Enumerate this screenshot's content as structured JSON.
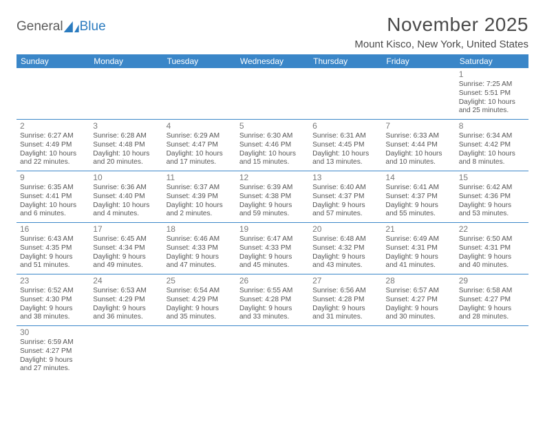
{
  "logo": {
    "part1": "General",
    "part2": "Blue"
  },
  "title": "November 2025",
  "location": "Mount Kisco, New York, United States",
  "colors": {
    "header_bg": "#3a86c8",
    "header_text": "#ffffff",
    "border": "#3a86c8",
    "text": "#555555",
    "logo_gray": "#5a5a5a",
    "logo_blue": "#2b7bbf"
  },
  "day_headers": [
    "Sunday",
    "Monday",
    "Tuesday",
    "Wednesday",
    "Thursday",
    "Friday",
    "Saturday"
  ],
  "weeks": [
    [
      {
        "n": "",
        "l1": "",
        "l2": "",
        "l3": "",
        "l4": ""
      },
      {
        "n": "",
        "l1": "",
        "l2": "",
        "l3": "",
        "l4": ""
      },
      {
        "n": "",
        "l1": "",
        "l2": "",
        "l3": "",
        "l4": ""
      },
      {
        "n": "",
        "l1": "",
        "l2": "",
        "l3": "",
        "l4": ""
      },
      {
        "n": "",
        "l1": "",
        "l2": "",
        "l3": "",
        "l4": ""
      },
      {
        "n": "",
        "l1": "",
        "l2": "",
        "l3": "",
        "l4": ""
      },
      {
        "n": "1",
        "l1": "Sunrise: 7:25 AM",
        "l2": "Sunset: 5:51 PM",
        "l3": "Daylight: 10 hours",
        "l4": "and 25 minutes."
      }
    ],
    [
      {
        "n": "2",
        "l1": "Sunrise: 6:27 AM",
        "l2": "Sunset: 4:49 PM",
        "l3": "Daylight: 10 hours",
        "l4": "and 22 minutes."
      },
      {
        "n": "3",
        "l1": "Sunrise: 6:28 AM",
        "l2": "Sunset: 4:48 PM",
        "l3": "Daylight: 10 hours",
        "l4": "and 20 minutes."
      },
      {
        "n": "4",
        "l1": "Sunrise: 6:29 AM",
        "l2": "Sunset: 4:47 PM",
        "l3": "Daylight: 10 hours",
        "l4": "and 17 minutes."
      },
      {
        "n": "5",
        "l1": "Sunrise: 6:30 AM",
        "l2": "Sunset: 4:46 PM",
        "l3": "Daylight: 10 hours",
        "l4": "and 15 minutes."
      },
      {
        "n": "6",
        "l1": "Sunrise: 6:31 AM",
        "l2": "Sunset: 4:45 PM",
        "l3": "Daylight: 10 hours",
        "l4": "and 13 minutes."
      },
      {
        "n": "7",
        "l1": "Sunrise: 6:33 AM",
        "l2": "Sunset: 4:44 PM",
        "l3": "Daylight: 10 hours",
        "l4": "and 10 minutes."
      },
      {
        "n": "8",
        "l1": "Sunrise: 6:34 AM",
        "l2": "Sunset: 4:42 PM",
        "l3": "Daylight: 10 hours",
        "l4": "and 8 minutes."
      }
    ],
    [
      {
        "n": "9",
        "l1": "Sunrise: 6:35 AM",
        "l2": "Sunset: 4:41 PM",
        "l3": "Daylight: 10 hours",
        "l4": "and 6 minutes."
      },
      {
        "n": "10",
        "l1": "Sunrise: 6:36 AM",
        "l2": "Sunset: 4:40 PM",
        "l3": "Daylight: 10 hours",
        "l4": "and 4 minutes."
      },
      {
        "n": "11",
        "l1": "Sunrise: 6:37 AM",
        "l2": "Sunset: 4:39 PM",
        "l3": "Daylight: 10 hours",
        "l4": "and 2 minutes."
      },
      {
        "n": "12",
        "l1": "Sunrise: 6:39 AM",
        "l2": "Sunset: 4:38 PM",
        "l3": "Daylight: 9 hours",
        "l4": "and 59 minutes."
      },
      {
        "n": "13",
        "l1": "Sunrise: 6:40 AM",
        "l2": "Sunset: 4:37 PM",
        "l3": "Daylight: 9 hours",
        "l4": "and 57 minutes."
      },
      {
        "n": "14",
        "l1": "Sunrise: 6:41 AM",
        "l2": "Sunset: 4:37 PM",
        "l3": "Daylight: 9 hours",
        "l4": "and 55 minutes."
      },
      {
        "n": "15",
        "l1": "Sunrise: 6:42 AM",
        "l2": "Sunset: 4:36 PM",
        "l3": "Daylight: 9 hours",
        "l4": "and 53 minutes."
      }
    ],
    [
      {
        "n": "16",
        "l1": "Sunrise: 6:43 AM",
        "l2": "Sunset: 4:35 PM",
        "l3": "Daylight: 9 hours",
        "l4": "and 51 minutes."
      },
      {
        "n": "17",
        "l1": "Sunrise: 6:45 AM",
        "l2": "Sunset: 4:34 PM",
        "l3": "Daylight: 9 hours",
        "l4": "and 49 minutes."
      },
      {
        "n": "18",
        "l1": "Sunrise: 6:46 AM",
        "l2": "Sunset: 4:33 PM",
        "l3": "Daylight: 9 hours",
        "l4": "and 47 minutes."
      },
      {
        "n": "19",
        "l1": "Sunrise: 6:47 AM",
        "l2": "Sunset: 4:33 PM",
        "l3": "Daylight: 9 hours",
        "l4": "and 45 minutes."
      },
      {
        "n": "20",
        "l1": "Sunrise: 6:48 AM",
        "l2": "Sunset: 4:32 PM",
        "l3": "Daylight: 9 hours",
        "l4": "and 43 minutes."
      },
      {
        "n": "21",
        "l1": "Sunrise: 6:49 AM",
        "l2": "Sunset: 4:31 PM",
        "l3": "Daylight: 9 hours",
        "l4": "and 41 minutes."
      },
      {
        "n": "22",
        "l1": "Sunrise: 6:50 AM",
        "l2": "Sunset: 4:31 PM",
        "l3": "Daylight: 9 hours",
        "l4": "and 40 minutes."
      }
    ],
    [
      {
        "n": "23",
        "l1": "Sunrise: 6:52 AM",
        "l2": "Sunset: 4:30 PM",
        "l3": "Daylight: 9 hours",
        "l4": "and 38 minutes."
      },
      {
        "n": "24",
        "l1": "Sunrise: 6:53 AM",
        "l2": "Sunset: 4:29 PM",
        "l3": "Daylight: 9 hours",
        "l4": "and 36 minutes."
      },
      {
        "n": "25",
        "l1": "Sunrise: 6:54 AM",
        "l2": "Sunset: 4:29 PM",
        "l3": "Daylight: 9 hours",
        "l4": "and 35 minutes."
      },
      {
        "n": "26",
        "l1": "Sunrise: 6:55 AM",
        "l2": "Sunset: 4:28 PM",
        "l3": "Daylight: 9 hours",
        "l4": "and 33 minutes."
      },
      {
        "n": "27",
        "l1": "Sunrise: 6:56 AM",
        "l2": "Sunset: 4:28 PM",
        "l3": "Daylight: 9 hours",
        "l4": "and 31 minutes."
      },
      {
        "n": "28",
        "l1": "Sunrise: 6:57 AM",
        "l2": "Sunset: 4:27 PM",
        "l3": "Daylight: 9 hours",
        "l4": "and 30 minutes."
      },
      {
        "n": "29",
        "l1": "Sunrise: 6:58 AM",
        "l2": "Sunset: 4:27 PM",
        "l3": "Daylight: 9 hours",
        "l4": "and 28 minutes."
      }
    ],
    [
      {
        "n": "30",
        "l1": "Sunrise: 6:59 AM",
        "l2": "Sunset: 4:27 PM",
        "l3": "Daylight: 9 hours",
        "l4": "and 27 minutes."
      },
      {
        "n": "",
        "l1": "",
        "l2": "",
        "l3": "",
        "l4": ""
      },
      {
        "n": "",
        "l1": "",
        "l2": "",
        "l3": "",
        "l4": ""
      },
      {
        "n": "",
        "l1": "",
        "l2": "",
        "l3": "",
        "l4": ""
      },
      {
        "n": "",
        "l1": "",
        "l2": "",
        "l3": "",
        "l4": ""
      },
      {
        "n": "",
        "l1": "",
        "l2": "",
        "l3": "",
        "l4": ""
      },
      {
        "n": "",
        "l1": "",
        "l2": "",
        "l3": "",
        "l4": ""
      }
    ]
  ]
}
